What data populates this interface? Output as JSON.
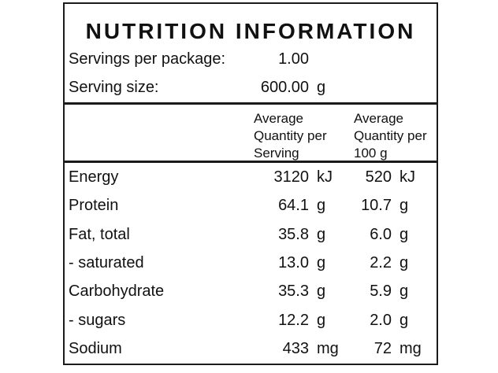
{
  "label": {
    "title": "NUTRITION INFORMATION",
    "servings_per_package": {
      "label": "Servings per package:",
      "value": "1.00",
      "unit": ""
    },
    "serving_size": {
      "label": "Serving size:",
      "value": "600.00",
      "unit": "g"
    },
    "columns": {
      "per_serving": "Average\nQuantity per\nServing",
      "per_100g": "Average\nQuantity per\n100 g"
    },
    "nutrients": [
      {
        "name": "Energy",
        "per_serving": "3120",
        "per_serving_unit": "kJ",
        "per_100g": "520",
        "per_100g_unit": "kJ"
      },
      {
        "name": "Protein",
        "per_serving": "64.1",
        "per_serving_unit": "g",
        "per_100g": "10.7",
        "per_100g_unit": "g"
      },
      {
        "name": "Fat, total",
        "per_serving": "35.8",
        "per_serving_unit": "g",
        "per_100g": "6.0",
        "per_100g_unit": "g"
      },
      {
        "name": "- saturated",
        "per_serving": "13.0",
        "per_serving_unit": "g",
        "per_100g": "2.2",
        "per_100g_unit": "g"
      },
      {
        "name": "Carbohydrate",
        "per_serving": "35.3",
        "per_serving_unit": "g",
        "per_100g": "5.9",
        "per_100g_unit": "g"
      },
      {
        "name": "- sugars",
        "per_serving": "12.2",
        "per_serving_unit": "g",
        "per_100g": "2.0",
        "per_100g_unit": "g"
      },
      {
        "name": "Sodium",
        "per_serving": "433",
        "per_serving_unit": "mg",
        "per_100g": "72",
        "per_100g_unit": "mg"
      }
    ],
    "colors": {
      "background": "#ffffff",
      "text": "#111111",
      "border": "#1b1b1b"
    }
  }
}
